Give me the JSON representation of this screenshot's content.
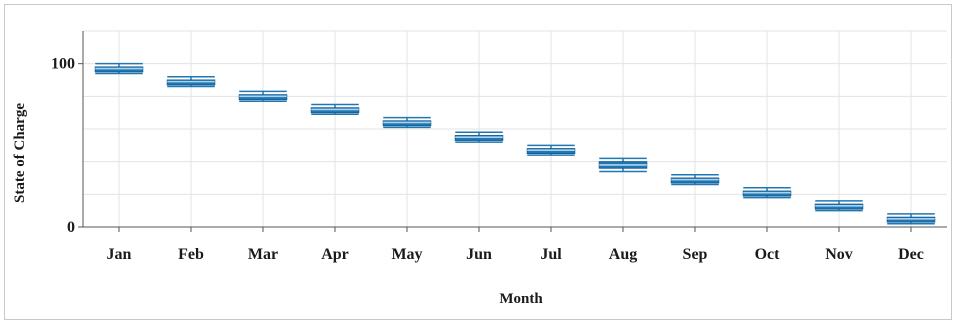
{
  "chart_data": {
    "type": "box",
    "title": "",
    "xlabel": "Month",
    "ylabel": "State of Charge",
    "categories": [
      "Jan",
      "Feb",
      "Mar",
      "Apr",
      "May",
      "Jun",
      "Jul",
      "Aug",
      "Sep",
      "Oct",
      "Nov",
      "Dec"
    ],
    "ylim": [
      0,
      120
    ],
    "yticks": [
      0,
      100
    ],
    "grid": true,
    "series": [
      {
        "boxes": [
          {
            "whisker_low": 94,
            "q1": 95,
            "median": 97,
            "q3": 98,
            "whisker_high": 100
          },
          {
            "whisker_low": 86,
            "q1": 87,
            "median": 89,
            "q3": 90,
            "whisker_high": 92
          },
          {
            "whisker_low": 77,
            "q1": 78,
            "median": 80,
            "q3": 81,
            "whisker_high": 83
          },
          {
            "whisker_low": 69,
            "q1": 70,
            "median": 72,
            "q3": 73,
            "whisker_high": 75
          },
          {
            "whisker_low": 61,
            "q1": 62,
            "median": 64,
            "q3": 65,
            "whisker_high": 67
          },
          {
            "whisker_low": 52,
            "q1": 53,
            "median": 55,
            "q3": 56,
            "whisker_high": 58
          },
          {
            "whisker_low": 44,
            "q1": 45,
            "median": 47,
            "q3": 48,
            "whisker_high": 50
          },
          {
            "whisker_low": 34,
            "q1": 36,
            "median": 38,
            "q3": 40,
            "whisker_high": 42
          },
          {
            "whisker_low": 26,
            "q1": 27,
            "median": 29,
            "q3": 30,
            "whisker_high": 32
          },
          {
            "whisker_low": 18,
            "q1": 19,
            "median": 21,
            "q3": 22,
            "whisker_high": 24
          },
          {
            "whisker_low": 10,
            "q1": 11,
            "median": 13,
            "q3": 14,
            "whisker_high": 16
          },
          {
            "whisker_low": 2,
            "q1": 3,
            "median": 5,
            "q3": 6,
            "whisker_high": 8
          }
        ]
      }
    ],
    "colors": {
      "box_fill": "#1f77b4",
      "box_stroke": "#1b5f92",
      "median": "#a9d3f0",
      "whisker": "#1f77b4",
      "grid": "#e3e3e3",
      "axis": "#555555"
    }
  }
}
